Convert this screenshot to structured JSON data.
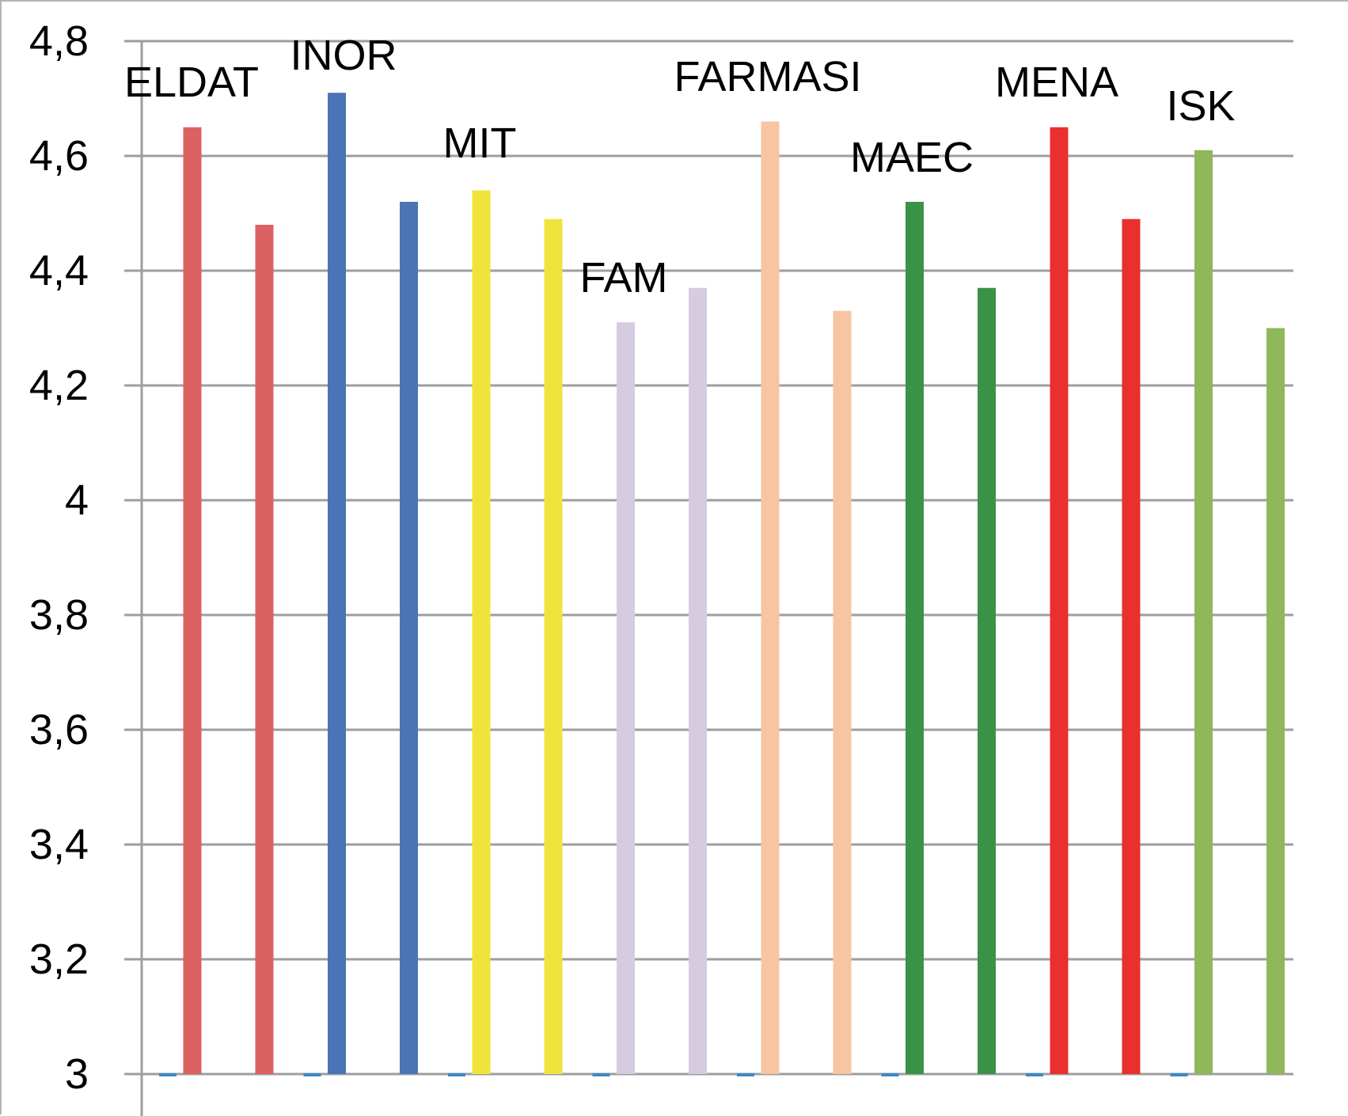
{
  "chart_data": {
    "type": "bar",
    "title": "",
    "xlabel": "",
    "ylabel": "",
    "ylim": [
      3,
      4.8
    ],
    "yticks": [
      {
        "value": 3,
        "label": "3"
      },
      {
        "value": 3.2,
        "label": "3,2"
      },
      {
        "value": 3.4,
        "label": "3,4"
      },
      {
        "value": 3.6,
        "label": "3,6"
      },
      {
        "value": 3.8,
        "label": "3,8"
      },
      {
        "value": 4,
        "label": "4"
      },
      {
        "value": 4.2,
        "label": "4,2"
      },
      {
        "value": 4.4,
        "label": "4,4"
      },
      {
        "value": 4.6,
        "label": "4,6"
      },
      {
        "value": 4.8,
        "label": "4,8"
      }
    ],
    "grid": true,
    "legend": "none",
    "categories": [
      "ELDAT",
      "INOR",
      "MIT",
      "FAM",
      "FARMASI",
      "MAEC",
      "MENA",
      "ISK"
    ],
    "series": [
      {
        "values": [
          4.65,
          4.71,
          4.54,
          4.31,
          4.66,
          4.52,
          4.65,
          4.61
        ]
      },
      {
        "values": [
          4.48,
          4.52,
          4.49,
          4.37,
          4.33,
          4.37,
          4.49,
          4.3
        ]
      }
    ],
    "colors": [
      "#db6262",
      "#4a74b5",
      "#f0e43c",
      "#d6cce0",
      "#f7c5a2",
      "#3a9249",
      "#ea2f2f",
      "#8fb85a"
    ],
    "baseline_marker_color": "#3d88c4"
  }
}
